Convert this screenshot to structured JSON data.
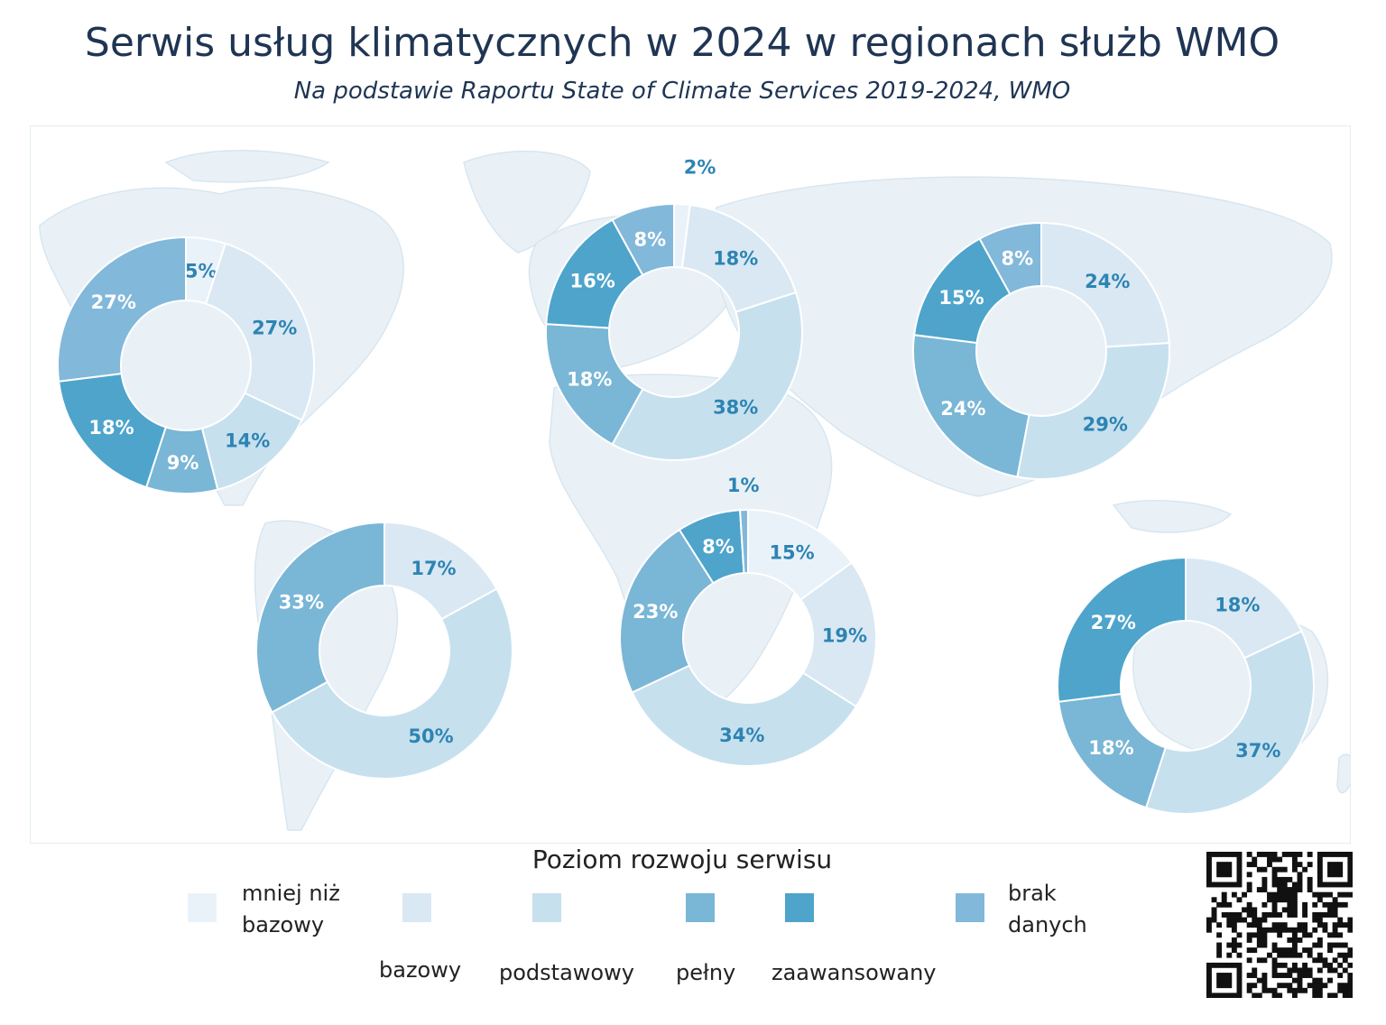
{
  "header": {
    "title": "Serwis usług klimatycznych w 2024 w regionach służb WMO",
    "subtitle": "Na podstawie Raportu State of Climate Services 2019-2024, WMO"
  },
  "colors": {
    "mniej_niz_bazowy": "#eaf2f9",
    "bazowy": "#d9e8f3",
    "podstawowy": "#c6e0ee",
    "pelny": "#7ab6d6",
    "zaawansowany": "#4ea4cb",
    "brak_danych": "#82b8da",
    "label": "#2d84b3",
    "label_light": "#ffffff"
  },
  "chart_data": [
    {
      "type": "pie",
      "region": "North America",
      "categories": [
        "mniej niż bazowy",
        "bazowy",
        "podstawowy",
        "pełny",
        "zaawansowany",
        "brak danych"
      ],
      "values": [
        5,
        27,
        14,
        9,
        18,
        27
      ],
      "labels": [
        "5%",
        "27%",
        "14%",
        "9%",
        "18%",
        "27%"
      ]
    },
    {
      "type": "pie",
      "region": "Europe",
      "categories": [
        "mniej niż bazowy",
        "bazowy",
        "podstawowy",
        "pełny",
        "zaawansowany",
        "brak danych"
      ],
      "values": [
        2,
        18,
        38,
        18,
        16,
        8
      ],
      "labels": [
        "2%",
        "18%",
        "38%",
        "18%",
        "16%",
        "8%"
      ]
    },
    {
      "type": "pie",
      "region": "Asia",
      "categories": [
        "mniej niż bazowy",
        "bazowy",
        "podstawowy",
        "pełny",
        "zaawansowany",
        "brak danych"
      ],
      "values": [
        0,
        24,
        29,
        24,
        15,
        8
      ],
      "labels": [
        "",
        "24%",
        "29%",
        "24%",
        "15%",
        "8%"
      ]
    },
    {
      "type": "pie",
      "region": "South America",
      "categories": [
        "mniej niż bazowy",
        "bazowy",
        "podstawowy",
        "pełny",
        "zaawansowany",
        "brak danych"
      ],
      "values": [
        0,
        17,
        50,
        33,
        0,
        0
      ],
      "labels": [
        "",
        "17%",
        "50%",
        "33%",
        "",
        ""
      ]
    },
    {
      "type": "pie",
      "region": "Africa",
      "categories": [
        "mniej niż bazowy",
        "bazowy",
        "podstawowy",
        "pełny",
        "zaawansowany",
        "brak danych"
      ],
      "values": [
        15,
        19,
        34,
        23,
        8,
        1
      ],
      "labels": [
        "15%",
        "19%",
        "34%",
        "23%",
        "8%",
        "1%"
      ]
    },
    {
      "type": "pie",
      "region": "South-West Pacific",
      "categories": [
        "mniej niż bazowy",
        "bazowy",
        "podstawowy",
        "pełny",
        "zaawansowany",
        "brak danych"
      ],
      "values": [
        0,
        18,
        37,
        18,
        27,
        0
      ],
      "labels": [
        "",
        "18%",
        "37%",
        "18%",
        "27%",
        ""
      ]
    }
  ],
  "legend": {
    "title": "Poziom rozwoju serwisu",
    "items": [
      {
        "key": "mniej_niz_bazowy",
        "line1": "mniej niż",
        "line2": "bazowy"
      },
      {
        "key": "bazowy",
        "label": "bazowy"
      },
      {
        "key": "podstawowy",
        "label": "podstawowy"
      },
      {
        "key": "pelny",
        "label": "pełny"
      },
      {
        "key": "zaawansowany",
        "label": "zaawansowany"
      },
      {
        "key": "brak_danych",
        "line1": "brak",
        "line2": "danych"
      }
    ]
  }
}
